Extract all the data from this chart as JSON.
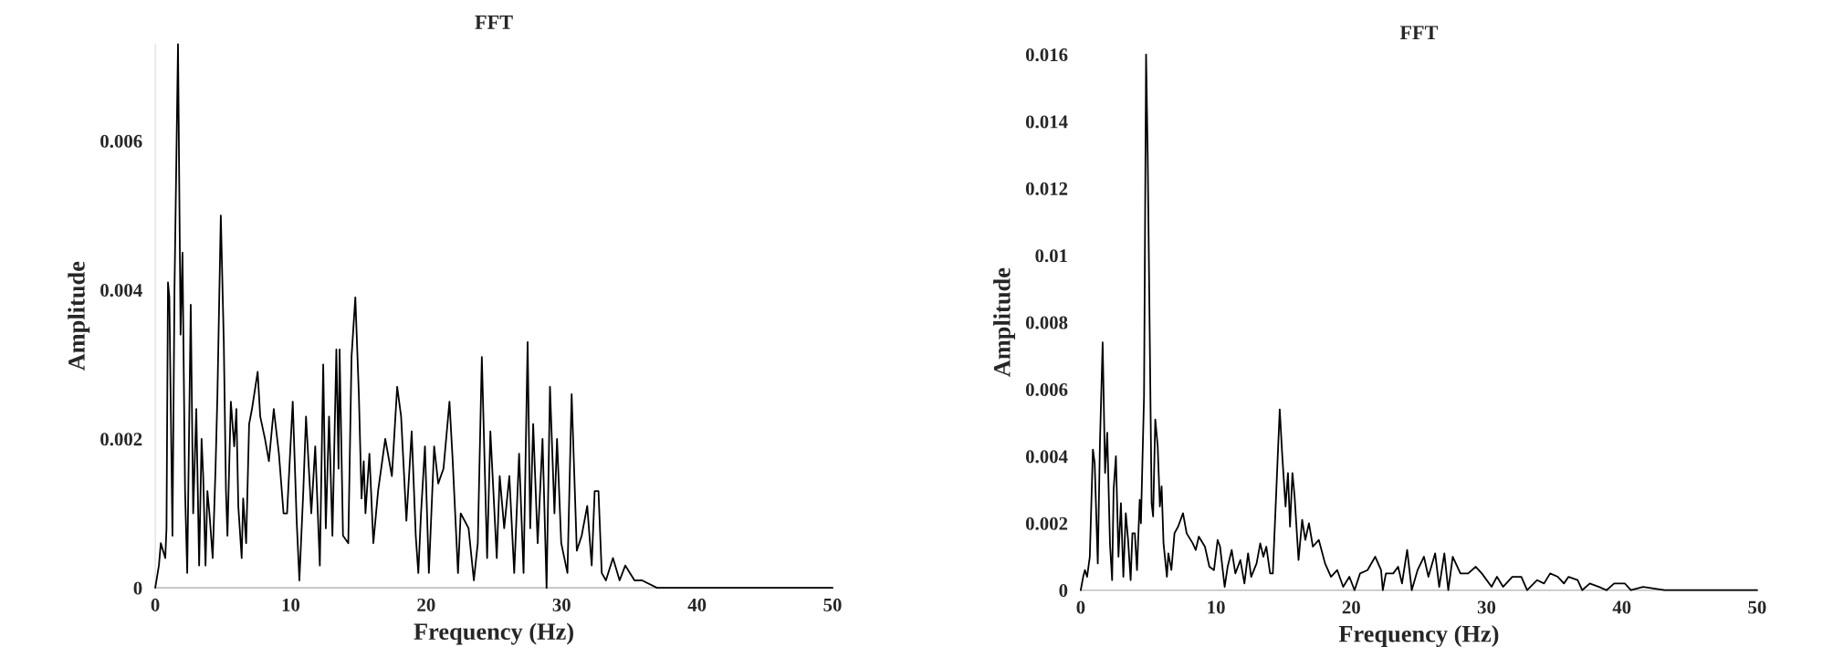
{
  "chart_data": [
    {
      "type": "line",
      "title": "FFT",
      "xlabel": "Frequency (Hz)",
      "ylabel": "Amplitude",
      "xlim": [
        0,
        50
      ],
      "xticks": [
        0,
        10,
        20,
        30,
        40,
        50
      ],
      "ylim": [
        0,
        0.0073
      ],
      "yticks": [
        0,
        0.002,
        0.004,
        0.006
      ],
      "grid": false,
      "series": [
        {
          "color": "#000000",
          "x": [
            0,
            0.27,
            0.41,
            0.74,
            0.83,
            0.94,
            1.04,
            1.27,
            1.42,
            1.68,
            1.87,
            2.01,
            2.2,
            2.36,
            2.62,
            2.8,
            3.03,
            3.24,
            3.42,
            3.54,
            3.71,
            3.85,
            4.0,
            4.24,
            4.45,
            4.59,
            4.84,
            5.06,
            5.22,
            5.33,
            5.58,
            5.83,
            5.99,
            6.13,
            6.38,
            6.49,
            6.71,
            6.93,
            7.14,
            7.56,
            7.75,
            8.1,
            8.39,
            8.75,
            9.13,
            9.47,
            9.73,
            10.15,
            10.44,
            10.64,
            10.93,
            11.13,
            11.52,
            11.81,
            12.15,
            12.4,
            12.59,
            12.83,
            13.08,
            13.37,
            13.53,
            13.61,
            13.86,
            14.25,
            14.49,
            14.77,
            15.03,
            15.23,
            15.39,
            15.52,
            15.81,
            16.1,
            16.45,
            16.98,
            17.47,
            17.86,
            18.15,
            18.54,
            18.93,
            19.23,
            19.42,
            19.62,
            19.91,
            20.2,
            20.59,
            20.89,
            21.28,
            21.72,
            21.96,
            22.35,
            22.55,
            23.13,
            23.52,
            23.81,
            24.11,
            24.5,
            24.74,
            25.21,
            25.43,
            25.76,
            26.14,
            26.5,
            26.86,
            27.19,
            27.49,
            27.68,
            27.9,
            28.23,
            28.59,
            28.89,
            29.14,
            29.47,
            29.66,
            29.97,
            30.43,
            30.74,
            31.12,
            31.48,
            31.89,
            32.22,
            32.44,
            32.72,
            32.96,
            33.27,
            33.79,
            34.28,
            34.7,
            35.38,
            35.94,
            37.04,
            41.77,
            50.0
          ],
          "values": [
            0,
            0.0003,
            0.0006,
            0.0004,
            0.0008,
            0.0041,
            0.0039,
            0.0007,
            0.004,
            0.0073,
            0.0034,
            0.0045,
            0.0013,
            0.0002,
            0.0038,
            0.001,
            0.0024,
            0.0003,
            0.002,
            0.0015,
            0.0003,
            0.0013,
            0.001,
            0.0004,
            0.0016,
            0.0026,
            0.005,
            0.0033,
            0.0013,
            0.0007,
            0.0025,
            0.0019,
            0.0024,
            0.0011,
            0.0004,
            0.0012,
            0.0006,
            0.0022,
            0.0024,
            0.0029,
            0.0023,
            0.002,
            0.0017,
            0.0024,
            0.0018,
            0.001,
            0.001,
            0.0025,
            0.0009,
            0.0001,
            0.0013,
            0.0023,
            0.001,
            0.0019,
            0.0003,
            0.003,
            0.0008,
            0.0023,
            0.0007,
            0.0032,
            0.0016,
            0.0032,
            0.0007,
            0.0006,
            0.0031,
            0.0039,
            0.0026,
            0.0012,
            0.0017,
            0.001,
            0.0018,
            0.0006,
            0.0013,
            0.002,
            0.0015,
            0.0027,
            0.0023,
            0.0009,
            0.0021,
            0.0007,
            0.0002,
            0.001,
            0.0019,
            0.0002,
            0.0019,
            0.0014,
            0.0016,
            0.0025,
            0.0017,
            0.0002,
            0.001,
            0.0008,
            0.0001,
            0.0006,
            0.0031,
            0.0004,
            0.0021,
            0.0004,
            0.0015,
            0.0008,
            0.0015,
            0.0002,
            0.0018,
            0.0002,
            0.0033,
            0.0008,
            0.0022,
            0.0006,
            0.002,
            0.0,
            0.0027,
            0.001,
            0.002,
            0.0006,
            0.0002,
            0.0026,
            0.0005,
            0.0007,
            0.0011,
            0.0003,
            0.0013,
            0.0013,
            0.0002,
            0.0001,
            0.0004,
            0.0001,
            0.0003,
            0.0001,
            0.0001,
            0,
            0,
            0
          ]
        }
      ]
    },
    {
      "type": "line",
      "title": "FFT",
      "xlabel": "Frequency (Hz)",
      "ylabel": "Amplitude",
      "xlim": [
        0,
        50
      ],
      "xticks": [
        0,
        10,
        20,
        30,
        40,
        50
      ],
      "ylim": [
        0,
        0.016
      ],
      "yticks": [
        0,
        0.002,
        0.004,
        0.006,
        0.008,
        0.01,
        0.012,
        0.014,
        0.016
      ],
      "grid": false,
      "series": [
        {
          "color": "#000000",
          "x": [
            0,
            0.18,
            0.31,
            0.47,
            0.67,
            0.9,
            1.03,
            1.26,
            1.42,
            1.62,
            1.8,
            1.96,
            2.16,
            2.32,
            2.43,
            2.6,
            2.79,
            2.97,
            3.15,
            3.33,
            3.5,
            3.69,
            3.82,
            4.0,
            4.16,
            4.36,
            4.45,
            4.57,
            4.68,
            4.83,
            4.95,
            5.24,
            5.35,
            5.51,
            5.69,
            5.85,
            5.98,
            6.12,
            6.37,
            6.48,
            6.7,
            6.93,
            7.2,
            7.56,
            7.83,
            8.28,
            8.5,
            8.73,
            9.18,
            9.51,
            9.85,
            10.12,
            10.3,
            10.64,
            10.86,
            11.16,
            11.43,
            11.8,
            12.1,
            12.37,
            12.6,
            13.0,
            13.27,
            13.5,
            13.72,
            14.0,
            14.2,
            14.46,
            14.71,
            14.9,
            15.14,
            15.32,
            15.47,
            15.65,
            15.81,
            16.1,
            16.37,
            16.6,
            16.87,
            17.16,
            17.6,
            18.06,
            18.5,
            18.96,
            19.4,
            19.86,
            20.24,
            20.65,
            21.2,
            21.77,
            22.2,
            22.33,
            22.56,
            23.1,
            23.46,
            23.75,
            24.13,
            24.47,
            24.9,
            25.37,
            25.7,
            26.2,
            26.5,
            26.88,
            27.17,
            27.5,
            28.07,
            28.64,
            29.2,
            29.65,
            30.37,
            30.77,
            31.22,
            31.9,
            32.57,
            33.0,
            33.74,
            34.25,
            34.7,
            35.27,
            35.72,
            36.06,
            36.73,
            37.07,
            37.63,
            38.31,
            38.87,
            39.43,
            40.22,
            40.67,
            41.57,
            43.15,
            44.49,
            45.6,
            46.97,
            50
          ],
          "values": [
            0,
            0.0004,
            0.0006,
            0.0004,
            0.001,
            0.0042,
            0.0038,
            0.0008,
            0.0044,
            0.0074,
            0.0035,
            0.0047,
            0.0014,
            0.0003,
            0.003,
            0.004,
            0.001,
            0.0026,
            0.0004,
            0.0023,
            0.0015,
            0.0003,
            0.0017,
            0.0017,
            0.0006,
            0.0027,
            0.002,
            0.004,
            0.0058,
            0.016,
            0.013,
            0.0026,
            0.0022,
            0.0051,
            0.0043,
            0.0025,
            0.0031,
            0.0014,
            0.0004,
            0.0011,
            0.0006,
            0.0017,
            0.0019,
            0.0023,
            0.0017,
            0.0014,
            0.0012,
            0.0016,
            0.0013,
            0.0007,
            0.0006,
            0.0015,
            0.0013,
            0.0001,
            0.0007,
            0.0012,
            0.0005,
            0.0009,
            0.0002,
            0.0011,
            0.0004,
            0.0008,
            0.0014,
            0.001,
            0.0013,
            0.0005,
            0.0005,
            0.003,
            0.0054,
            0.004,
            0.0025,
            0.0035,
            0.0019,
            0.0035,
            0.0028,
            0.0009,
            0.0021,
            0.0015,
            0.002,
            0.0013,
            0.0015,
            0.0008,
            0.0004,
            0.0006,
            0.0001,
            0.0004,
            0,
            0.0005,
            0.0006,
            0.001,
            0.0006,
            0,
            0.0005,
            0.0005,
            0.0007,
            0.0002,
            0.0012,
            0,
            0.0006,
            0.001,
            0.0004,
            0.0011,
            0.0001,
            0.0011,
            0,
            0.001,
            0.0005,
            0.0005,
            0.0007,
            0.0005,
            0.0001,
            0.0004,
            0.0001,
            0.0004,
            0.0004,
            0.0,
            0.0003,
            0.0002,
            0.0005,
            0.0004,
            0.0002,
            0.0004,
            0.0003,
            0,
            0.0002,
            0.0001,
            0,
            0.0002,
            0.0002,
            0,
            0.0001,
            0,
            0,
            0,
            0,
            0
          ]
        }
      ]
    }
  ]
}
